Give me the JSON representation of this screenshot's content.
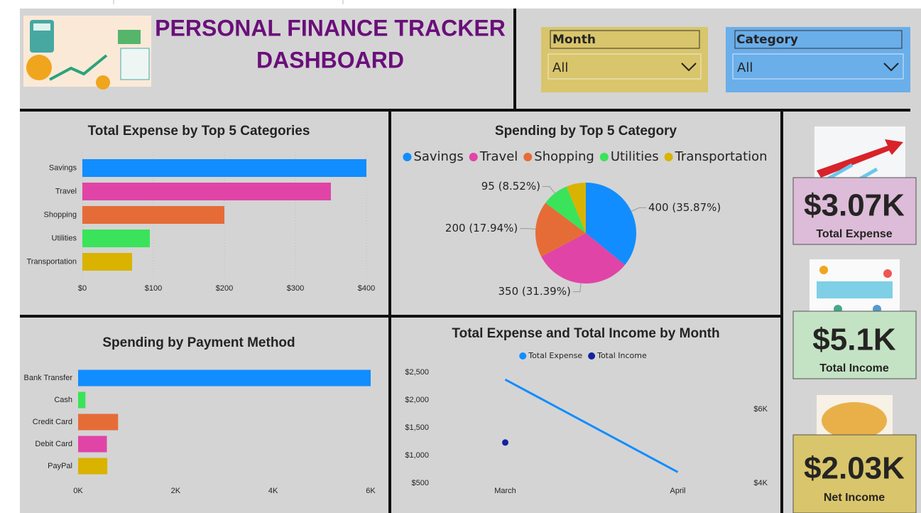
{
  "header": {
    "title_line1": "PERSONAL FINANCE TRACKER",
    "title_line2": "DASHBOARD"
  },
  "filters": [
    {
      "label": "Month",
      "value": "All"
    },
    {
      "label": "Category",
      "value": "All"
    }
  ],
  "cards": [
    {
      "value": "$3.07K",
      "label": "Total Expense"
    },
    {
      "value": "$5.1K",
      "label": "Total Income"
    },
    {
      "value": "$2.03K",
      "label": "Net Income"
    }
  ],
  "chart_data": [
    {
      "type": "hbar",
      "title": "Total Expense by Top 5 Categories",
      "categories": [
        "Savings",
        "Travel",
        "Shopping",
        "Utilities",
        "Transportation"
      ],
      "values": [
        400,
        350,
        200,
        95,
        70
      ],
      "colors": [
        "#118dff",
        "#e044a7",
        "#e66c37",
        "#3ae35a",
        "#d9b300"
      ],
      "xlim": [
        0,
        400
      ],
      "xticks": [
        {
          "value": 0,
          "label": "$0"
        },
        {
          "value": 100,
          "label": "$100"
        },
        {
          "value": 200,
          "label": "$200"
        },
        {
          "value": 300,
          "label": "$300"
        },
        {
          "value": 400,
          "label": "$400"
        }
      ],
      "grid": true
    },
    {
      "type": "pie",
      "title": "Spending by Top 5 Category",
      "categories": [
        "Savings",
        "Travel",
        "Shopping",
        "Utilities",
        "Transportation"
      ],
      "values": [
        400,
        350,
        200,
        95,
        70
      ],
      "value_labels": [
        "400 (35.87%)",
        "350 (31.39%)",
        "200 (17.94%)",
        "95 (8.52%)",
        null
      ],
      "colors": [
        "#118dff",
        "#e044a7",
        "#e66c37",
        "#3ae35a",
        "#d9b300"
      ]
    },
    {
      "type": "hbar",
      "title": "Spending by Payment Method",
      "categories": [
        "Bank Transfer",
        "Cash",
        "Credit Card",
        "Debit Card",
        "PayPal"
      ],
      "values": [
        6000,
        150,
        820,
        590,
        600
      ],
      "colors": [
        "#118dff",
        "#3ae35a",
        "#e66c37",
        "#e044a7",
        "#d9b300"
      ],
      "xlim": [
        0,
        6000
      ],
      "xticks": [
        {
          "value": 0,
          "label": "0K"
        },
        {
          "value": 2000,
          "label": "2K"
        },
        {
          "value": 4000,
          "label": "4K"
        },
        {
          "value": 6000,
          "label": "6K"
        }
      ],
      "grid": false
    },
    {
      "type": "line",
      "title": "Total Expense and Total Income by Month",
      "categories": [
        "March",
        "April"
      ],
      "series": [
        {
          "name": "Total Expense",
          "color": "#118dff",
          "values": [
            2370,
            700
          ]
        },
        {
          "name": "Total Income",
          "color": "#12239e",
          "values": [
            5100,
            null
          ],
          "axis": "y2"
        }
      ],
      "ylim": [
        500,
        2500
      ],
      "yticks": [
        {
          "value": 500,
          "label": "$500"
        },
        {
          "value": 1000,
          "label": "$1,000"
        },
        {
          "value": 1500,
          "label": "$1,500"
        },
        {
          "value": 2000,
          "label": "$2,000"
        },
        {
          "value": 2500,
          "label": "$2,500"
        }
      ],
      "y2lim": [
        4000,
        7000
      ],
      "y2ticks": [
        {
          "value": 4000,
          "label": "$4K"
        },
        {
          "value": 6000,
          "label": "$6K"
        }
      ]
    }
  ]
}
